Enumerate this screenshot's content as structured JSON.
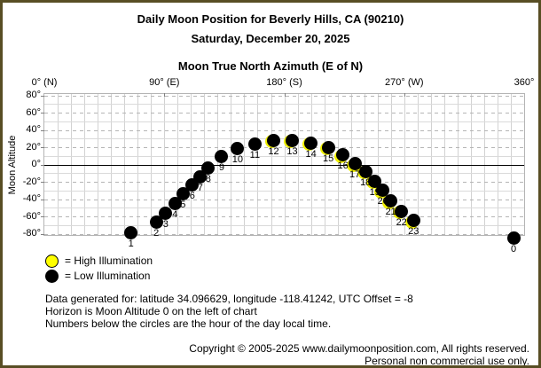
{
  "header": {
    "title": "Daily Moon Position for Beverly Hills, CA (90210)",
    "date": "Saturday, December 20, 2025"
  },
  "chart_data": {
    "type": "scatter",
    "title": "Moon True North Azimuth (E of N)",
    "x_axis": {
      "min": 0,
      "max": 360,
      "gridline_step_deg": 10,
      "ticks": [
        {
          "azimuth": 0,
          "label": "0° (N)"
        },
        {
          "azimuth": 90,
          "label": "90° (E)"
        },
        {
          "azimuth": 180,
          "label": "180° (S)"
        },
        {
          "azimuth": 270,
          "label": "270° (W)"
        },
        {
          "azimuth": 360,
          "label": "360°"
        }
      ]
    },
    "y_axis": {
      "label": "Moon Altitude",
      "min": -82,
      "max": 82,
      "tick_step_deg": 20,
      "gridline_step_deg": 10,
      "tick_labels": [
        "80°",
        "60°",
        "40°",
        "20°",
        "0°",
        "-20°",
        "-40°",
        "-60°",
        "-80°"
      ]
    },
    "horizon_altitude": 0,
    "points": [
      {
        "hour": 1,
        "azimuth": 65,
        "altitude": -79,
        "illumination": "low",
        "yellow_rim": false
      },
      {
        "hour": 2,
        "azimuth": 84,
        "altitude": -67,
        "illumination": "low",
        "yellow_rim": false
      },
      {
        "hour": 3,
        "azimuth": 91,
        "altitude": -56,
        "illumination": "low",
        "yellow_rim": false
      },
      {
        "hour": 4,
        "azimuth": 98,
        "altitude": -45,
        "illumination": "low",
        "yellow_rim": false
      },
      {
        "hour": 5,
        "azimuth": 104,
        "altitude": -34,
        "illumination": "low",
        "yellow_rim": false
      },
      {
        "hour": 6,
        "azimuth": 111,
        "altitude": -24,
        "illumination": "low",
        "yellow_rim": false
      },
      {
        "hour": 7,
        "azimuth": 117,
        "altitude": -14,
        "illumination": "low",
        "yellow_rim": false
      },
      {
        "hour": 8,
        "azimuth": 123,
        "altitude": -4,
        "illumination": "low",
        "yellow_rim": false
      },
      {
        "hour": 9,
        "azimuth": 133,
        "altitude": 9,
        "illumination": "low",
        "yellow_rim": false
      },
      {
        "hour": 10,
        "azimuth": 145,
        "altitude": 19,
        "illumination": "low",
        "yellow_rim": false
      },
      {
        "hour": 11,
        "azimuth": 158,
        "altitude": 24,
        "illumination": "low",
        "yellow_rim": false
      },
      {
        "hour": 12,
        "azimuth": 172,
        "altitude": 28,
        "illumination": "low",
        "yellow_rim": true
      },
      {
        "hour": 13,
        "azimuth": 186,
        "altitude": 28,
        "illumination": "low",
        "yellow_rim": true
      },
      {
        "hour": 14,
        "azimuth": 200,
        "altitude": 25,
        "illumination": "low",
        "yellow_rim": true
      },
      {
        "hour": 15,
        "azimuth": 213,
        "altitude": 20,
        "illumination": "low",
        "yellow_rim": true
      },
      {
        "hour": 16,
        "azimuth": 224,
        "altitude": 11,
        "illumination": "low",
        "yellow_rim": true
      },
      {
        "hour": 17,
        "azimuth": 233,
        "altitude": 1,
        "illumination": "low",
        "yellow_rim": true
      },
      {
        "hour": 18,
        "azimuth": 241,
        "altitude": -8,
        "illumination": "low",
        "yellow_rim": true
      },
      {
        "hour": 19,
        "azimuth": 248,
        "altitude": -19,
        "illumination": "low",
        "yellow_rim": true
      },
      {
        "hour": 20,
        "azimuth": 254,
        "altitude": -30,
        "illumination": "low",
        "yellow_rim": true
      },
      {
        "hour": 21,
        "azimuth": 260,
        "altitude": -42,
        "illumination": "low",
        "yellow_rim": true
      },
      {
        "hour": 22,
        "azimuth": 268,
        "altitude": -54,
        "illumination": "low",
        "yellow_rim": true
      },
      {
        "hour": 23,
        "azimuth": 277,
        "altitude": -65,
        "illumination": "low",
        "yellow_rim": true
      },
      {
        "hour": 0,
        "azimuth": 352,
        "altitude": -85,
        "illumination": "low",
        "yellow_rim": false
      }
    ],
    "legend": [
      {
        "marker": "high",
        "label": "= High Illumination"
      },
      {
        "marker": "low",
        "label": "= Low Illumination"
      }
    ]
  },
  "notes": {
    "line1": "Data generated for: latitude 34.096629, longitude -118.41242, UTC Offset = -8",
    "line2": "Horizon is Moon Altitude 0 on the left of chart",
    "line3": "Numbers below the circles are the hour of the day local time."
  },
  "copyright": {
    "line1": "Copyright © 2005-2025 www.dailymoonposition.com, All rights reserved.",
    "line2": "Personal non commercial use only."
  },
  "colors": {
    "border": "#584e24",
    "high_illumination": "#ffff00",
    "low_illumination": "#000000"
  }
}
